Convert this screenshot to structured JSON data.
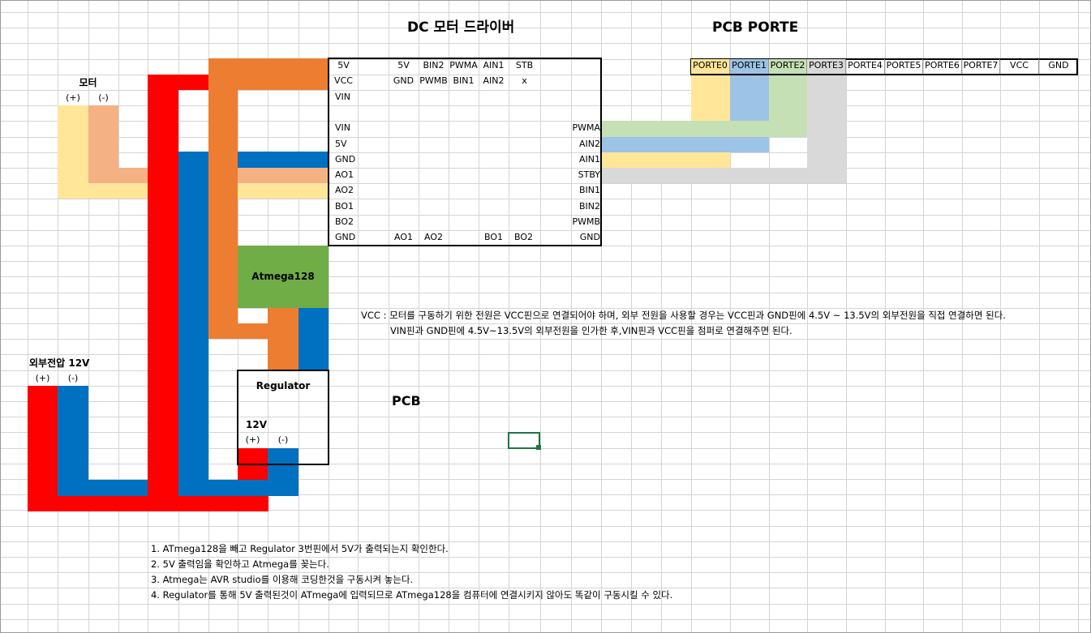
{
  "title": "DC 모터 드라이버",
  "pcb_porte_title": "PCB PORTE",
  "pcb_label": "PCB",
  "motor": {
    "label": "모터",
    "plus": "(+)",
    "minus": "(-)"
  },
  "ext_power": {
    "label": "외부전압 12V",
    "plus": "(+)",
    "minus": "(-)"
  },
  "regulator": {
    "label": "Regulator",
    "voltage": "12V",
    "plus": "(+)",
    "minus": "(-)"
  },
  "mcu": {
    "label": "Atmega128"
  },
  "driver": {
    "top_row1": [
      "5V",
      "5V",
      "BIN2",
      "PWMA",
      "AIN1",
      "STB"
    ],
    "top_row2": [
      "VCC",
      "GND",
      "PWMB",
      "BIN1",
      "AIN2",
      "x"
    ],
    "left_pins": [
      "VIN",
      "",
      "VIN",
      "5V",
      "GND",
      "AO1",
      "AO2",
      "BO1",
      "BO2",
      "GND"
    ],
    "right_pins": [
      "PWMA",
      "AIN2",
      "AIN1",
      "STBY",
      "BIN1",
      "BIN2",
      "PWMB",
      "GND"
    ],
    "bottom_row": [
      "AO1",
      "AO2",
      "BO1",
      "BO2"
    ]
  },
  "porte_headers": [
    "PORTE0",
    "PORTE1",
    "PORTE2",
    "PORTE3",
    "PORTE4",
    "PORTE5",
    "PORTE6",
    "PORTE7",
    "VCC",
    "GND"
  ],
  "notes": {
    "vcc_line1": "VCC : 모터를 구동하기 위한 전원은 VCC핀으로 연결되어야 하며, 외부 전원을 사용할 경우는 VCC핀과 GND핀에 4.5V ~ 13.5V의 외부전원을 직접 연결하면 된다.",
    "vcc_line2": "VIN핀과 GND핀에 4.5V~13.5V의 외부전원을 인가한 후,VIN핀과 VCC핀을 점퍼로 연결해주면 된다.",
    "steps": [
      "1. ATmega128을 빼고 Regulator 3번핀에서 5V가 출력되는지 확인한다.",
      "2. 5V 출력임을 확인하고 Atmega를 꽂는다.",
      "3. Atmega는 AVR studio를 이용해 코딩한것을 구동시켜 놓는다.",
      "4. Regulator를 통해 5V 출력된것이 ATmega에 입력되므로 ATmega128을 컴퓨터에 연결시키지 않아도 똑같이 구동시킬 수 있다."
    ]
  },
  "colors": {
    "red": "#ff0000",
    "blue": "#0070c0",
    "orange": "#ed7d31",
    "green": "#70ad47",
    "peach": "#f4b183",
    "yellow": "#ffe699",
    "light_blue": "#9dc3e6",
    "light_green": "#c5e0b4",
    "gray": "#d9d9d9",
    "selection": "#217346"
  }
}
